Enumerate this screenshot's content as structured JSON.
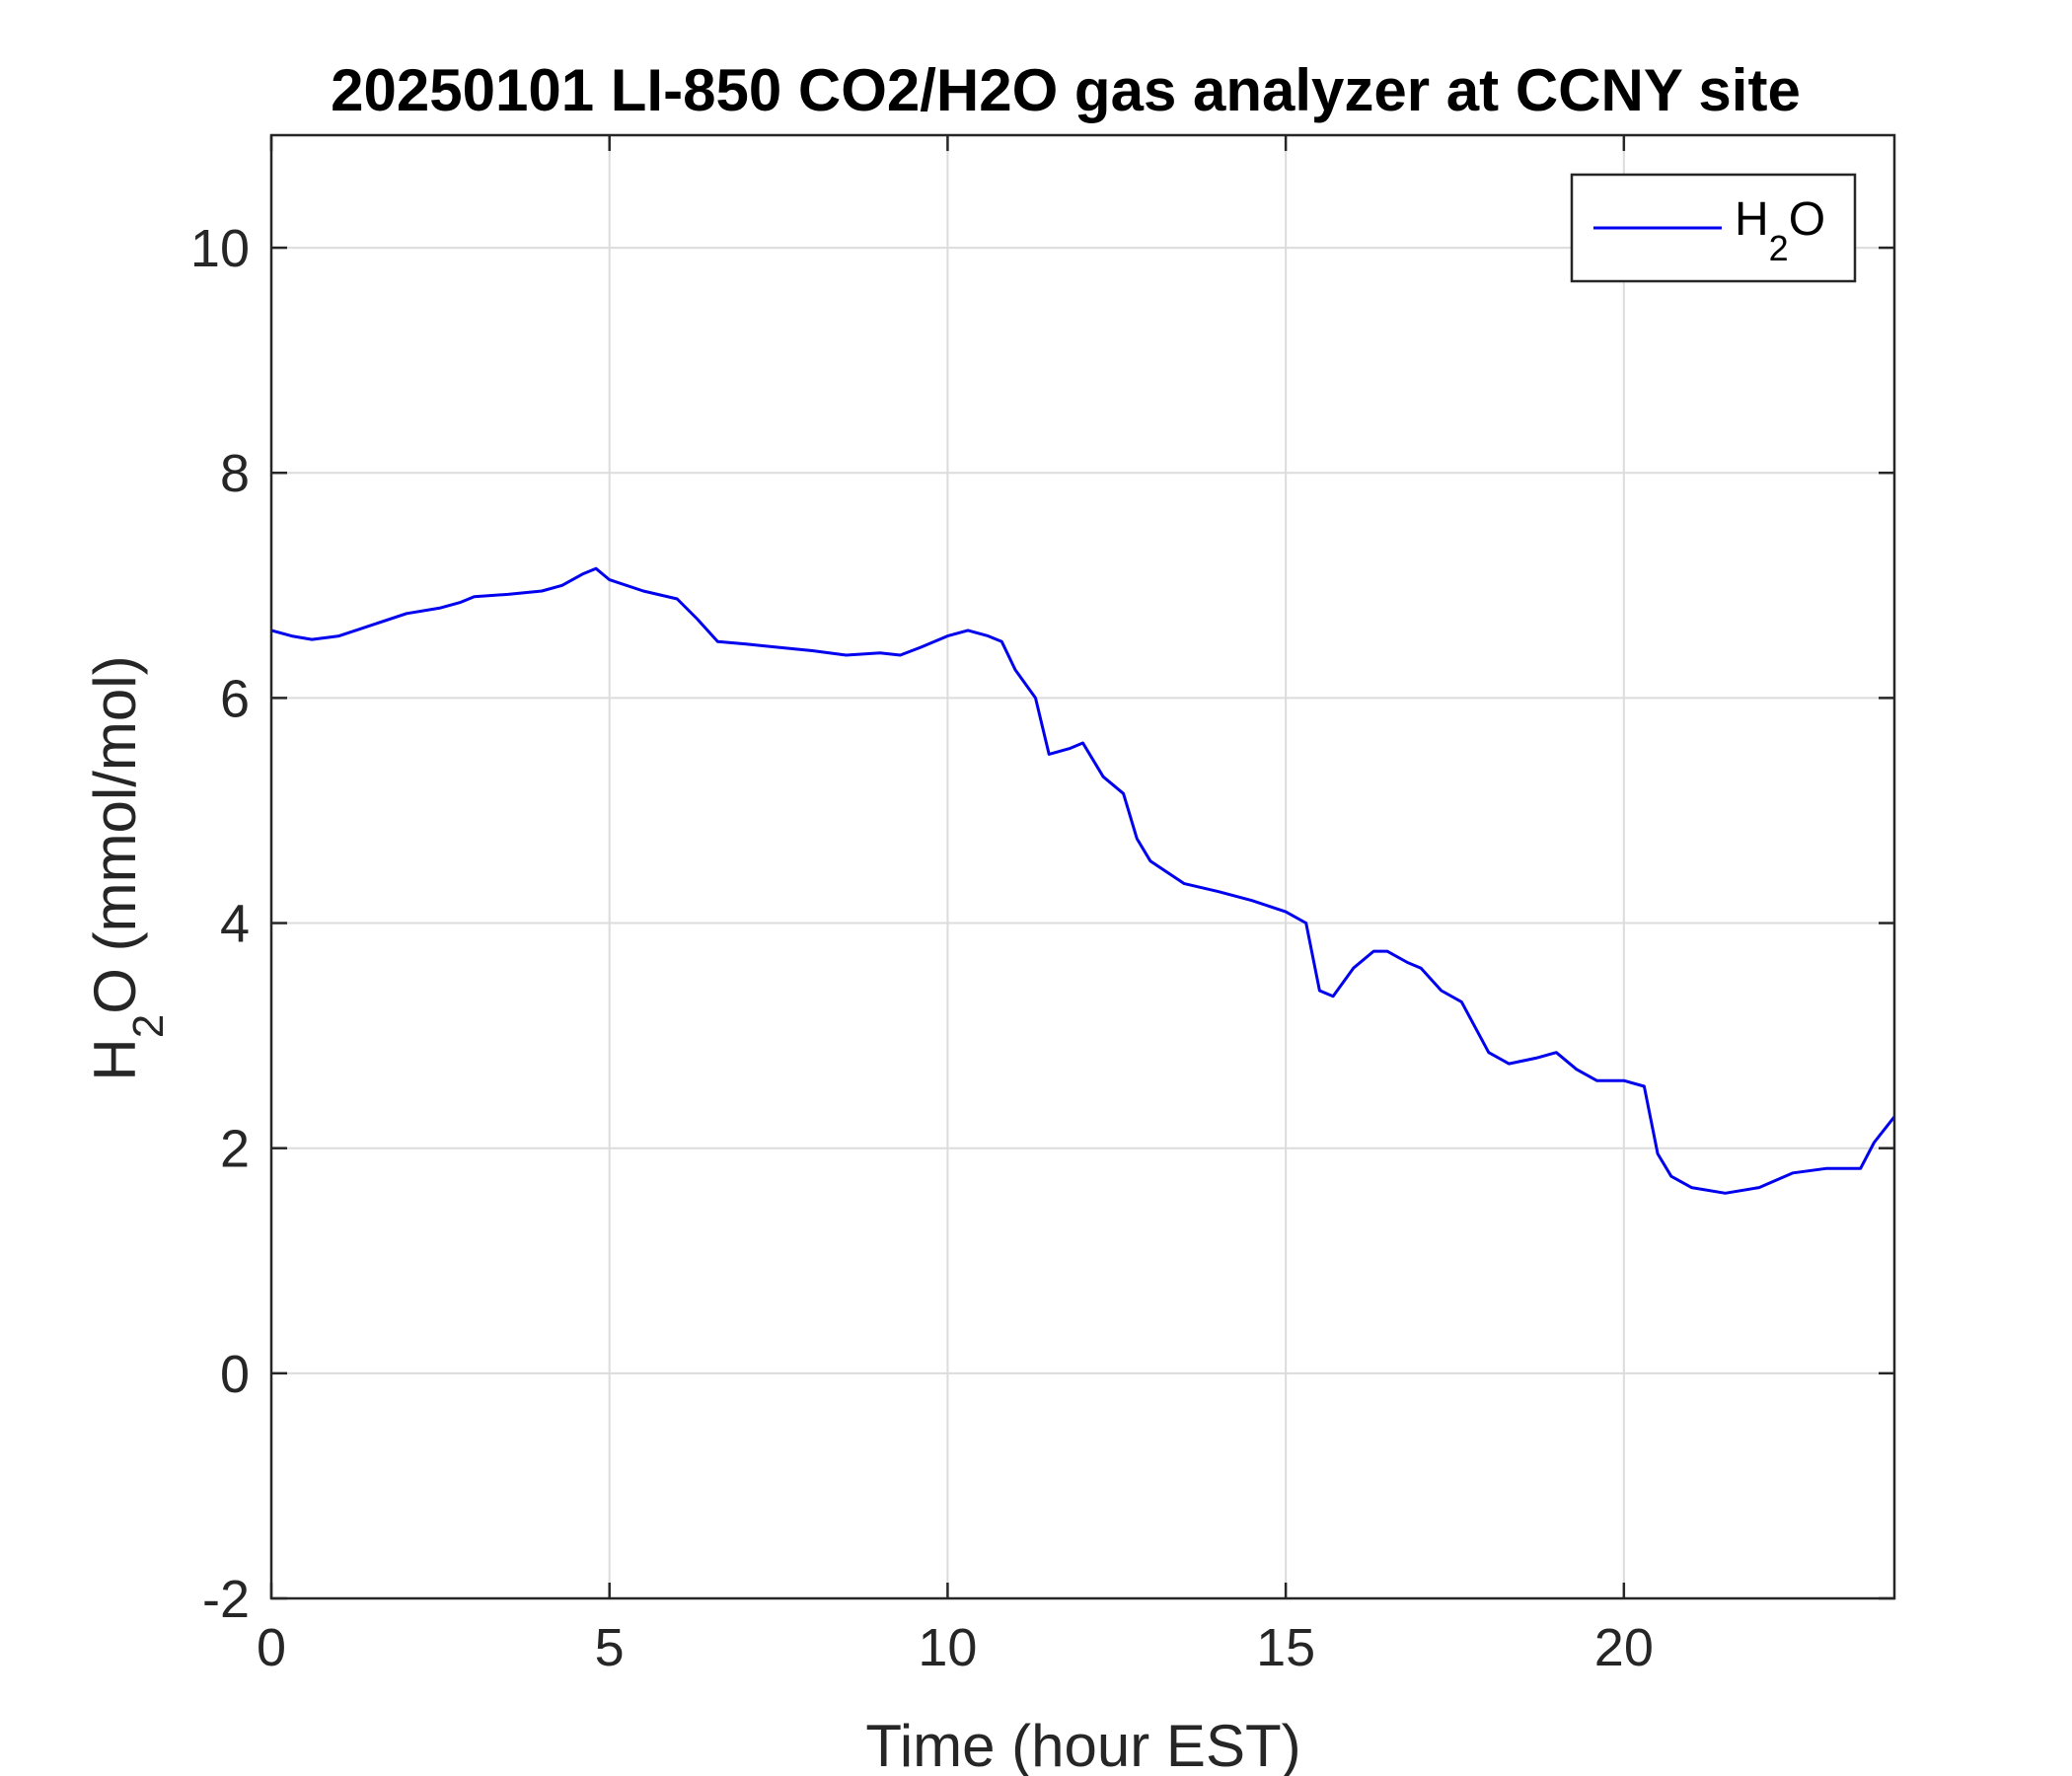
{
  "chart_data": {
    "type": "line",
    "title": "20250101 LI-850 CO2/H2O gas analyzer at CCNY site",
    "xlabel": "Time (hour EST)",
    "ylabel": {
      "pre": "H",
      "sub": "2",
      "post": "O (mmol/mol)"
    },
    "xlim": [
      0,
      24
    ],
    "ylim": [
      -2,
      11
    ],
    "xticks": [
      0,
      5,
      10,
      15,
      20
    ],
    "yticks": [
      -2,
      0,
      2,
      4,
      6,
      8,
      10
    ],
    "xtick_labels": [
      "0",
      "5",
      "10",
      "15",
      "20"
    ],
    "ytick_labels": [
      "-2",
      "0",
      "2",
      "4",
      "6",
      "8",
      "10"
    ],
    "grid": true,
    "legend": {
      "position": "top-right",
      "pre": "H",
      "sub": "2",
      "post": "O"
    },
    "series": [
      {
        "name": "H2O",
        "color": "#0000ee",
        "x": [
          0,
          0.3,
          0.6,
          1.0,
          1.5,
          2.0,
          2.5,
          2.8,
          3.0,
          3.5,
          4.0,
          4.3,
          4.6,
          4.8,
          5.0,
          5.5,
          6.0,
          6.3,
          6.6,
          7.0,
          7.5,
          8.0,
          8.5,
          9.0,
          9.3,
          9.6,
          10.0,
          10.3,
          10.6,
          10.8,
          11.0,
          11.3,
          11.5,
          11.8,
          12.0,
          12.3,
          12.6,
          12.8,
          13.0,
          13.5,
          14.0,
          14.5,
          15.0,
          15.3,
          15.5,
          15.7,
          16.0,
          16.3,
          16.5,
          16.8,
          17.0,
          17.3,
          17.6,
          18.0,
          18.3,
          18.7,
          19.0,
          19.3,
          19.6,
          20.0,
          20.3,
          20.5,
          20.7,
          21.0,
          21.5,
          22.0,
          22.5,
          23.0,
          23.5,
          23.7,
          24.0
        ],
        "y": [
          6.6,
          6.55,
          6.52,
          6.55,
          6.65,
          6.75,
          6.8,
          6.85,
          6.9,
          6.92,
          6.95,
          7.0,
          7.1,
          7.15,
          7.05,
          6.95,
          6.88,
          6.7,
          6.5,
          6.48,
          6.45,
          6.42,
          6.38,
          6.4,
          6.38,
          6.45,
          6.55,
          6.6,
          6.55,
          6.5,
          6.25,
          6.0,
          5.5,
          5.55,
          5.6,
          5.3,
          5.15,
          4.75,
          4.55,
          4.35,
          4.28,
          4.2,
          4.1,
          4.0,
          3.4,
          3.35,
          3.6,
          3.75,
          3.75,
          3.65,
          3.6,
          3.4,
          3.3,
          2.85,
          2.75,
          2.8,
          2.85,
          2.7,
          2.6,
          2.6,
          2.55,
          1.95,
          1.75,
          1.65,
          1.6,
          1.65,
          1.78,
          1.82,
          1.82,
          2.05,
          2.28
        ]
      }
    ]
  }
}
